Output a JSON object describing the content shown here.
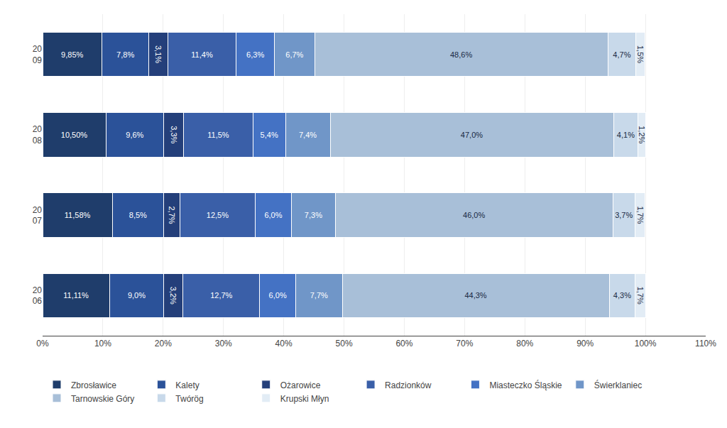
{
  "chart_data": {
    "type": "bar",
    "orientation": "horizontal",
    "stacked": true,
    "data_labels": true,
    "grid": true,
    "legend": "bottom",
    "categories": [
      "20\n06",
      "20\n07",
      "20\n08",
      "20\n09"
    ],
    "xlim": [
      0,
      110
    ],
    "xticks": [
      {
        "value": 0,
        "label": "0%"
      },
      {
        "value": 10,
        "label": "10%"
      },
      {
        "value": 20,
        "label": "20%"
      },
      {
        "value": 30,
        "label": "30%"
      },
      {
        "value": 40,
        "label": "40%"
      },
      {
        "value": 50,
        "label": "50%"
      },
      {
        "value": 60,
        "label": "60%"
      },
      {
        "value": 70,
        "label": "70%"
      },
      {
        "value": 80,
        "label": "80%"
      },
      {
        "value": 90,
        "label": "90%"
      },
      {
        "value": 100,
        "label": "100%"
      },
      {
        "value": 110,
        "label": "110%"
      }
    ],
    "series": [
      {
        "name": "Zbrosławice",
        "color": "#1F3D6B",
        "values": [
          11.11,
          11.58,
          10.5,
          9.85
        ],
        "value_labels": [
          "11,11%",
          "11,58%",
          "10,50%",
          "9,85%"
        ]
      },
      {
        "name": "Kalety",
        "color": "#2B5299",
        "values": [
          9.0,
          8.5,
          9.6,
          7.8
        ],
        "value_labels": [
          "9,0%",
          "8,5%",
          "9,6%",
          "7,8%"
        ]
      },
      {
        "name": "Ożarowice",
        "color": "#243F7A",
        "values": [
          3.2,
          2.7,
          3.3,
          3.1
        ],
        "value_labels": [
          "3,2%",
          "2,7%",
          "3,3%",
          "3,1%"
        ]
      },
      {
        "name": "Radzionków",
        "color": "#3A5FA8",
        "values": [
          12.7,
          12.5,
          11.5,
          11.4
        ],
        "value_labels": [
          "12,7%",
          "12,5%",
          "11,5%",
          "11,4%"
        ]
      },
      {
        "name": "Miasteczko Śląskie",
        "color": "#4472C4",
        "values": [
          6.0,
          6.0,
          5.4,
          6.3
        ],
        "value_labels": [
          "6,0%",
          "6,0%",
          "5,4%",
          "6,3%"
        ]
      },
      {
        "name": "Świerklaniec",
        "color": "#7096C8",
        "values": [
          7.7,
          7.3,
          7.4,
          6.7
        ],
        "value_labels": [
          "7,7%",
          "7,3%",
          "7,4%",
          "6,7%"
        ]
      },
      {
        "name": "Tarnowskie Góry",
        "color": "#A8BFD8",
        "values": [
          44.3,
          46.0,
          47.0,
          48.6
        ],
        "value_labels": [
          "44,3%",
          "46,0%",
          "47,0%",
          "48,6%"
        ]
      },
      {
        "name": "Twórög",
        "color": "#C8D9EA",
        "values": [
          4.3,
          3.7,
          4.1,
          4.7
        ],
        "value_labels": [
          "4,3%",
          "3,7%",
          "4,1%",
          "4,7%"
        ]
      },
      {
        "name": "Krupski Młyn",
        "color": "#E2ECF5",
        "values": [
          1.7,
          1.7,
          1.2,
          1.5
        ],
        "value_labels": [
          "1,7%",
          "1,7%",
          "1,2%",
          "1,5%"
        ]
      }
    ]
  }
}
